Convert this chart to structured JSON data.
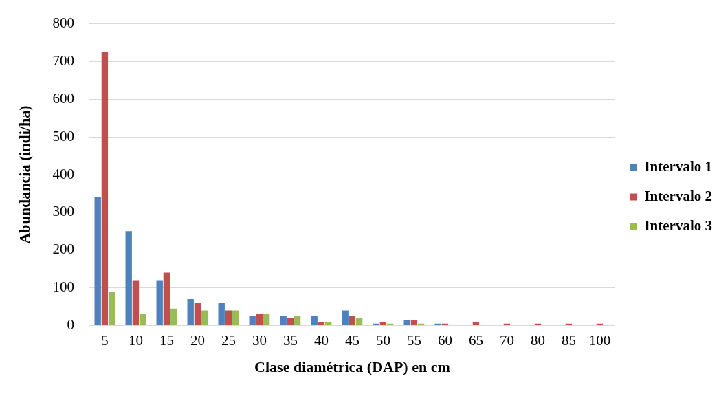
{
  "chart_data": {
    "type": "bar",
    "xlabel": "Clase diamétrica (DAP) en cm",
    "ylabel": "Abundancia (indi/ha)",
    "categories": [
      "5",
      "10",
      "15",
      "20",
      "25",
      "30",
      "35",
      "40",
      "45",
      "50",
      "55",
      "60",
      "65",
      "70",
      "80",
      "85",
      "100"
    ],
    "series": [
      {
        "name": "Intervalo 1",
        "color": "#4f81bd",
        "values": [
          340,
          250,
          120,
          70,
          60,
          25,
          25,
          25,
          40,
          5,
          15,
          5,
          0,
          0,
          0,
          0,
          0
        ]
      },
      {
        "name": "Intervalo 2",
        "color": "#c0504d",
        "values": [
          725,
          120,
          140,
          60,
          40,
          30,
          20,
          10,
          25,
          10,
          15,
          5,
          10,
          5,
          5,
          5,
          5
        ]
      },
      {
        "name": "Intervalo 3",
        "color": "#9bbb59",
        "values": [
          90,
          30,
          45,
          40,
          40,
          30,
          25,
          10,
          20,
          5,
          5,
          0,
          0,
          0,
          0,
          0,
          0
        ]
      }
    ],
    "ylim": [
      0,
      800
    ],
    "yticks": [
      0,
      100,
      200,
      300,
      400,
      500,
      600,
      700,
      800
    ],
    "grid": "y",
    "legend": "right"
  }
}
